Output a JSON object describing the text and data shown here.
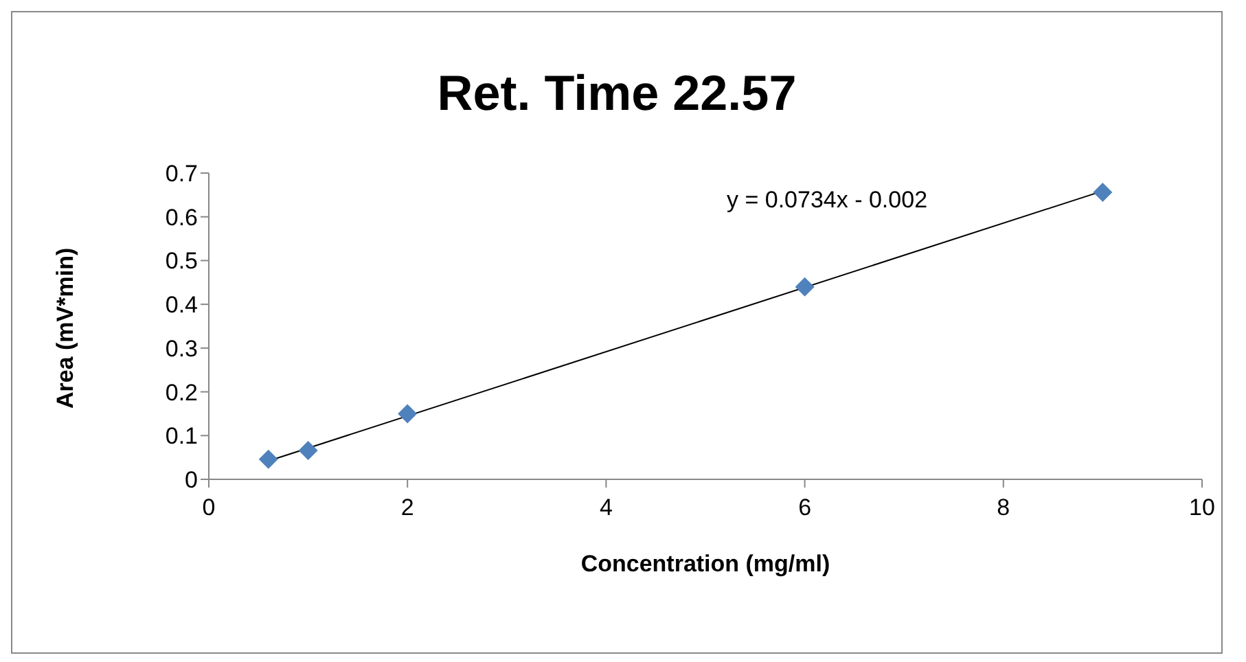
{
  "chart_data": {
    "type": "scatter",
    "title": "Ret. Time 22.57",
    "xlabel": "Concentration (mg/ml)",
    "ylabel": "Area (mV*min)",
    "marker": "diamond",
    "series": [
      {
        "type": "scatter",
        "color": "#4f81bd",
        "x": [
          0.6,
          1,
          2,
          6,
          9
        ],
        "values": [
          0.046,
          0.066,
          0.15,
          0.44,
          0.656
        ]
      },
      {
        "type": "line",
        "color": "#000000",
        "marker": "none",
        "x": [
          0.6,
          9
        ],
        "values": [
          0.042,
          0.659
        ]
      }
    ],
    "xlim": [
      0,
      10
    ],
    "xticks": [
      0,
      2,
      4,
      6,
      8,
      10
    ],
    "ylim": [
      0,
      0.7
    ],
    "yticks": [
      0,
      0.1,
      0.2,
      0.3,
      0.4,
      0.5,
      0.6,
      0.7
    ],
    "annotations": [
      "y = 0.0734x - 0.002"
    ]
  }
}
